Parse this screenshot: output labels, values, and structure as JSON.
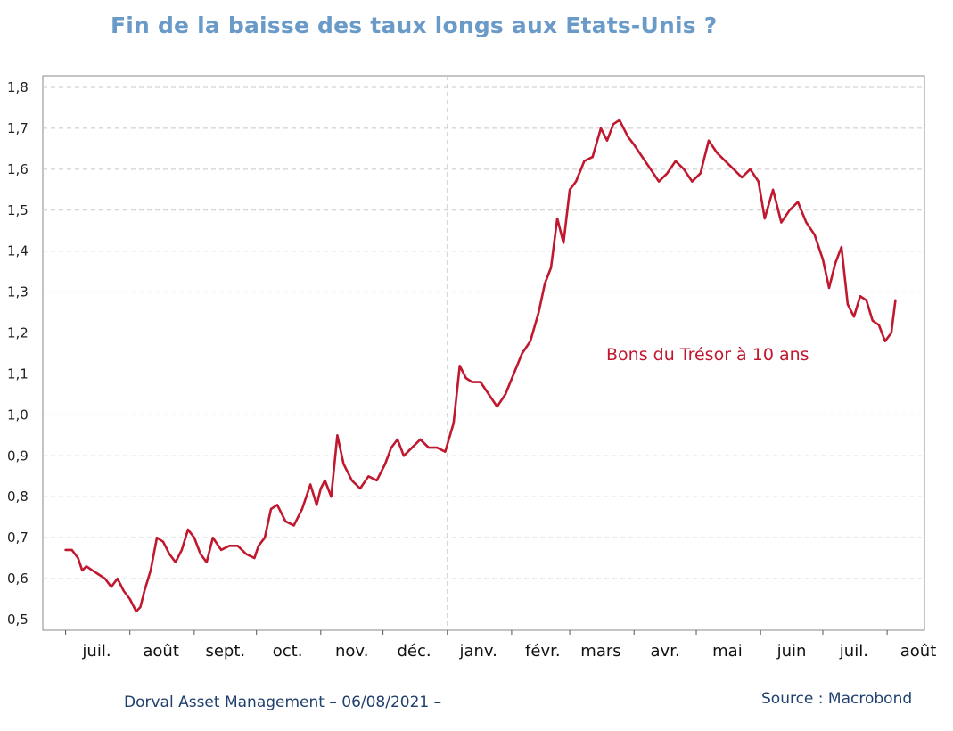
{
  "title": "Fin de la baisse des taux longs aux Etats-Unis ?",
  "footer": {
    "left": "Dorval Asset Management – 06/08/2021 –",
    "right": "Source : Macrobond"
  },
  "colors": {
    "title": "#6a9bc8",
    "series": "#c0182f",
    "footer": "#1f3f6e",
    "grid": "#c8c8c8"
  },
  "chart_data": {
    "type": "line",
    "title": "Fin de la baisse des taux longs aux Etats-Unis ?",
    "xlabel": "",
    "ylabel": "",
    "ylim": [
      0.5,
      1.8
    ],
    "y_ticks": [
      "0,5",
      "0,6",
      "0,7",
      "0,8",
      "0,9",
      "1,0",
      "1,1",
      "1,2",
      "1,3",
      "1,4",
      "1,5",
      "1,6",
      "1,7",
      "1,8"
    ],
    "x_ticks": [
      "juil.",
      "août",
      "sept.",
      "oct.",
      "nov.",
      "déc.",
      "janv.",
      "févr.",
      "mars",
      "avr.",
      "mai",
      "juin",
      "juil.",
      "août"
    ],
    "grid": "horizontal dashed",
    "year_divider": "janv.",
    "annotation": "Bons du Trésor à 10 ans",
    "series": [
      {
        "name": "Bons du Trésor à 10 ans",
        "x": [
          "2020-07-01",
          "2020-07-04",
          "2020-07-07",
          "2020-07-09",
          "2020-07-11",
          "2020-07-14",
          "2020-07-17",
          "2020-07-20",
          "2020-07-23",
          "2020-07-26",
          "2020-07-29",
          "2020-08-01",
          "2020-08-04",
          "2020-08-06",
          "2020-08-08",
          "2020-08-11",
          "2020-08-14",
          "2020-08-17",
          "2020-08-20",
          "2020-08-23",
          "2020-08-26",
          "2020-08-29",
          "2020-09-01",
          "2020-09-04",
          "2020-09-07",
          "2020-09-10",
          "2020-09-14",
          "2020-09-18",
          "2020-09-22",
          "2020-09-26",
          "2020-09-30",
          "2020-10-02",
          "2020-10-05",
          "2020-10-08",
          "2020-10-11",
          "2020-10-15",
          "2020-10-19",
          "2020-10-23",
          "2020-10-27",
          "2020-10-30",
          "2020-11-01",
          "2020-11-03",
          "2020-11-06",
          "2020-11-09",
          "2020-11-12",
          "2020-11-16",
          "2020-11-20",
          "2020-11-24",
          "2020-11-28",
          "2020-12-02",
          "2020-12-05",
          "2020-12-08",
          "2020-12-11",
          "2020-12-15",
          "2020-12-19",
          "2020-12-23",
          "2020-12-27",
          "2020-12-31",
          "2021-01-04",
          "2021-01-07",
          "2021-01-10",
          "2021-01-13",
          "2021-01-17",
          "2021-01-21",
          "2021-01-25",
          "2021-01-29",
          "2021-02-02",
          "2021-02-06",
          "2021-02-10",
          "2021-02-14",
          "2021-02-17",
          "2021-02-20",
          "2021-02-23",
          "2021-02-26",
          "2021-03-01",
          "2021-03-04",
          "2021-03-08",
          "2021-03-12",
          "2021-03-16",
          "2021-03-19",
          "2021-03-22",
          "2021-03-25",
          "2021-03-29",
          "2021-04-01",
          "2021-04-05",
          "2021-04-09",
          "2021-04-13",
          "2021-04-17",
          "2021-04-21",
          "2021-04-25",
          "2021-04-29",
          "2021-05-03",
          "2021-05-07",
          "2021-05-11",
          "2021-05-15",
          "2021-05-19",
          "2021-05-23",
          "2021-05-27",
          "2021-05-31",
          "2021-06-03",
          "2021-06-07",
          "2021-06-11",
          "2021-06-15",
          "2021-06-19",
          "2021-06-23",
          "2021-06-27",
          "2021-07-01",
          "2021-07-04",
          "2021-07-07",
          "2021-07-10",
          "2021-07-13",
          "2021-07-16",
          "2021-07-19",
          "2021-07-22",
          "2021-07-25",
          "2021-07-28",
          "2021-07-31",
          "2021-08-03",
          "2021-08-05"
        ],
        "values": [
          0.67,
          0.67,
          0.65,
          0.62,
          0.63,
          0.62,
          0.61,
          0.6,
          0.58,
          0.6,
          0.57,
          0.55,
          0.52,
          0.53,
          0.57,
          0.62,
          0.7,
          0.69,
          0.66,
          0.64,
          0.67,
          0.72,
          0.7,
          0.66,
          0.64,
          0.7,
          0.67,
          0.68,
          0.68,
          0.66,
          0.65,
          0.68,
          0.7,
          0.77,
          0.78,
          0.74,
          0.73,
          0.77,
          0.83,
          0.78,
          0.82,
          0.84,
          0.8,
          0.95,
          0.88,
          0.84,
          0.82,
          0.85,
          0.84,
          0.88,
          0.92,
          0.94,
          0.9,
          0.92,
          0.94,
          0.92,
          0.92,
          0.91,
          0.98,
          1.12,
          1.09,
          1.08,
          1.08,
          1.05,
          1.02,
          1.05,
          1.1,
          1.15,
          1.18,
          1.25,
          1.32,
          1.36,
          1.48,
          1.42,
          1.55,
          1.57,
          1.62,
          1.63,
          1.7,
          1.67,
          1.71,
          1.72,
          1.68,
          1.66,
          1.63,
          1.6,
          1.57,
          1.59,
          1.62,
          1.6,
          1.57,
          1.59,
          1.67,
          1.64,
          1.62,
          1.6,
          1.58,
          1.6,
          1.57,
          1.48,
          1.55,
          1.47,
          1.5,
          1.52,
          1.47,
          1.44,
          1.38,
          1.31,
          1.37,
          1.41,
          1.27,
          1.24,
          1.29,
          1.28,
          1.23,
          1.22,
          1.18,
          1.2,
          1.28
        ]
      }
    ]
  }
}
